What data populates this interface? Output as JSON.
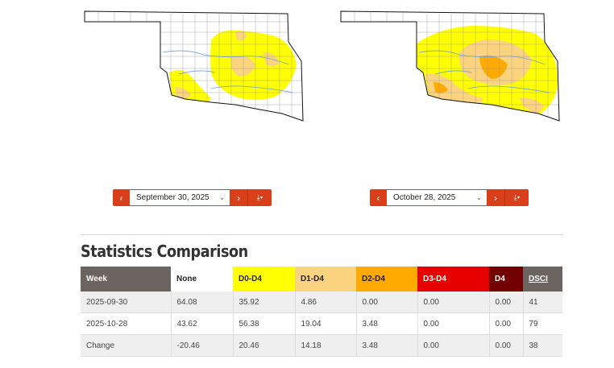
{
  "maps": {
    "left": {
      "date": "September 30, 2025"
    },
    "right": {
      "date": "October 28, 2025"
    }
  },
  "picker": {
    "prev_icon": "chevron-left-icon",
    "next_icon": "chevron-right-icon",
    "download_icon": "download-icon",
    "prev_glyph": "‹",
    "next_glyph": "›",
    "download_glyph": "⤓▾",
    "dropdown_glyph": "⌄"
  },
  "stats": {
    "title": "Statistics Comparison",
    "headers": [
      "Week",
      "None",
      "D0-D4",
      "D1-D4",
      "D2-D4",
      "D3-D4",
      "D4",
      "DSCI"
    ],
    "rows": [
      [
        "2025-09-30",
        "64.08",
        "35.92",
        "4.86",
        "0.00",
        "0.00",
        "0.00",
        "41"
      ],
      [
        "2025-10-28",
        "43.62",
        "56.38",
        "19.04",
        "3.48",
        "0.00",
        "0.00",
        "79"
      ],
      [
        "Change",
        "-20.46",
        "20.46",
        "14.18",
        "3.48",
        "0.00",
        "0.00",
        "38"
      ]
    ]
  },
  "colors": {
    "accent": "#d9401a",
    "d0": "#ffff00",
    "d1": "#fcd37f",
    "d2": "#ffaa00",
    "d3": "#e60000",
    "d4": "#730000",
    "header_dark": "#6b6460"
  }
}
